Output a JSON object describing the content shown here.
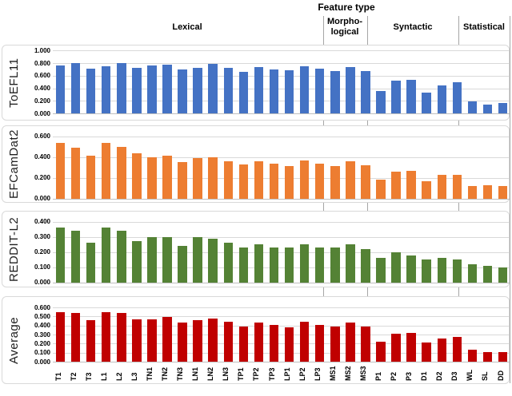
{
  "title": "Feature type",
  "groups": [
    {
      "label": "Lexical"
    },
    {
      "label": "Morpho-\nlogical"
    },
    {
      "label": "Syntactic"
    },
    {
      "label": "Statistical"
    }
  ],
  "chart_data": {
    "type": "bar",
    "title": "Feature type",
    "categories": [
      "T1",
      "T2",
      "T3",
      "L1",
      "L2",
      "L3",
      "TN1",
      "TN2",
      "TN3",
      "LN1",
      "LN2",
      "LN3",
      "TP1",
      "TP2",
      "TP3",
      "LP1",
      "LP2",
      "LP3",
      "MS1",
      "MS2",
      "MS3",
      "P1",
      "P2",
      "P3",
      "D1",
      "D2",
      "D3",
      "WL",
      "SL",
      "DD"
    ],
    "category_groups": [
      {
        "label": "Lexical",
        "from": "T1",
        "to": "LP3"
      },
      {
        "label": "Morpho-logical",
        "from": "MS1",
        "to": "MS3"
      },
      {
        "label": "Syntactic",
        "from": "P1",
        "to": "D3"
      },
      {
        "label": "Statistical",
        "from": "WL",
        "to": "DD"
      }
    ],
    "grid": true,
    "legend_position": "none",
    "series": [
      {
        "name": "ToEFL11",
        "color": "#4472C4",
        "ylim": [
          0,
          1.0
        ],
        "ytick_labels": [
          "1.000",
          "0.800",
          "0.600",
          "0.400",
          "0.200",
          "0.000"
        ],
        "values": [
          0.76,
          0.8,
          0.71,
          0.75,
          0.8,
          0.73,
          0.76,
          0.78,
          0.7,
          0.73,
          0.79,
          0.73,
          0.66,
          0.74,
          0.7,
          0.68,
          0.75,
          0.71,
          0.67,
          0.74,
          0.67,
          0.35,
          0.52,
          0.54,
          0.33,
          0.45,
          0.49,
          0.19,
          0.14,
          0.17
        ]
      },
      {
        "name": "EFCamDat2",
        "color": "#ED7D31",
        "ylim": [
          0,
          0.6
        ],
        "ytick_labels": [
          "0.600",
          "0.400",
          "0.200",
          "0.000"
        ],
        "values": [
          0.54,
          0.49,
          0.41,
          0.54,
          0.5,
          0.44,
          0.4,
          0.41,
          0.35,
          0.39,
          0.4,
          0.36,
          0.33,
          0.36,
          0.34,
          0.31,
          0.37,
          0.34,
          0.31,
          0.36,
          0.32,
          0.18,
          0.26,
          0.27,
          0.17,
          0.23,
          0.23,
          0.12,
          0.13,
          0.12
        ]
      },
      {
        "name": "REDDIT-L2",
        "color": "#548235",
        "ylim": [
          0,
          0.4
        ],
        "ytick_labels": [
          "0.400",
          "0.300",
          "0.200",
          "0.100",
          "0.000"
        ],
        "values": [
          0.36,
          0.34,
          0.26,
          0.36,
          0.34,
          0.27,
          0.3,
          0.3,
          0.24,
          0.3,
          0.29,
          0.26,
          0.23,
          0.25,
          0.23,
          0.23,
          0.25,
          0.23,
          0.23,
          0.25,
          0.22,
          0.16,
          0.2,
          0.18,
          0.15,
          0.16,
          0.15,
          0.12,
          0.11,
          0.1
        ]
      },
      {
        "name": "Average",
        "color": "#C00000",
        "ylim": [
          0,
          0.6
        ],
        "ytick_labels": [
          "0.600",
          "0.500",
          "0.400",
          "0.300",
          "0.200",
          "0.100",
          "0.000"
        ],
        "values": [
          0.55,
          0.54,
          0.46,
          0.55,
          0.54,
          0.47,
          0.47,
          0.49,
          0.43,
          0.46,
          0.48,
          0.44,
          0.39,
          0.43,
          0.41,
          0.38,
          0.44,
          0.41,
          0.39,
          0.43,
          0.39,
          0.22,
          0.31,
          0.32,
          0.21,
          0.26,
          0.27,
          0.13,
          0.11,
          0.11
        ]
      }
    ]
  }
}
